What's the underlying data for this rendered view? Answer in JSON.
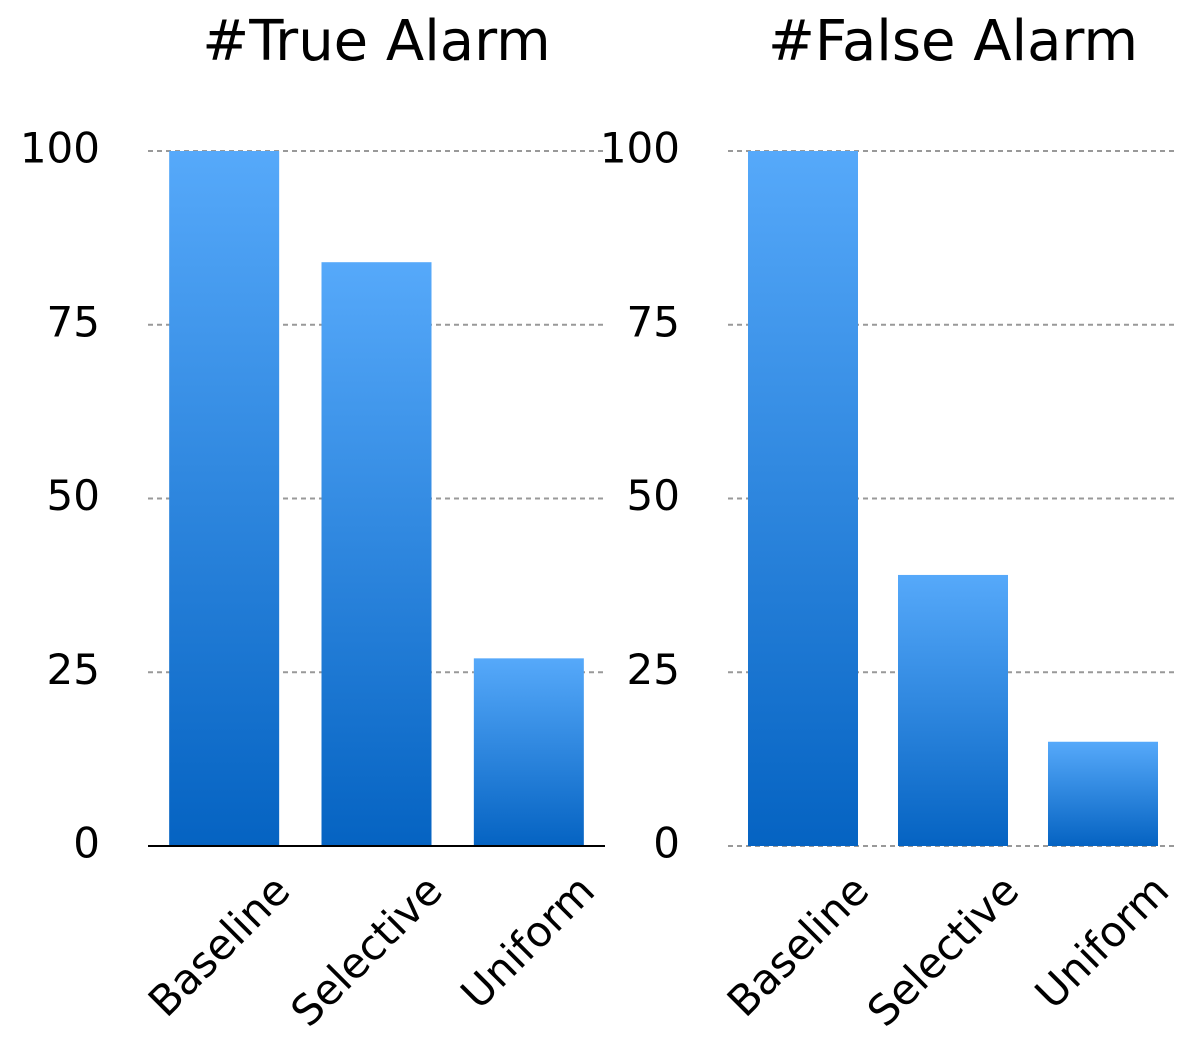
{
  "chart_data": [
    {
      "type": "bar",
      "title": "#True Alarm",
      "categories": [
        "Baseline",
        "Selective",
        "Uniform"
      ],
      "values": [
        100,
        84,
        27
      ],
      "gradient": [
        "#56a9fa",
        "#0563c2"
      ],
      "ylim": [
        0,
        100
      ],
      "yticks": [
        0,
        25,
        50,
        75,
        100
      ],
      "grid": true,
      "x_axis_line": true
    },
    {
      "type": "bar",
      "title": "#False Alarm",
      "categories": [
        "Baseline",
        "Selective",
        "Uniform"
      ],
      "values": [
        100,
        39,
        15
      ],
      "gradient": [
        "#56a9fa",
        "#0563c2"
      ],
      "ylim": [
        0,
        100
      ],
      "yticks": [
        0,
        25,
        50,
        75,
        100
      ],
      "grid": true,
      "x_axis_line": false
    }
  ]
}
